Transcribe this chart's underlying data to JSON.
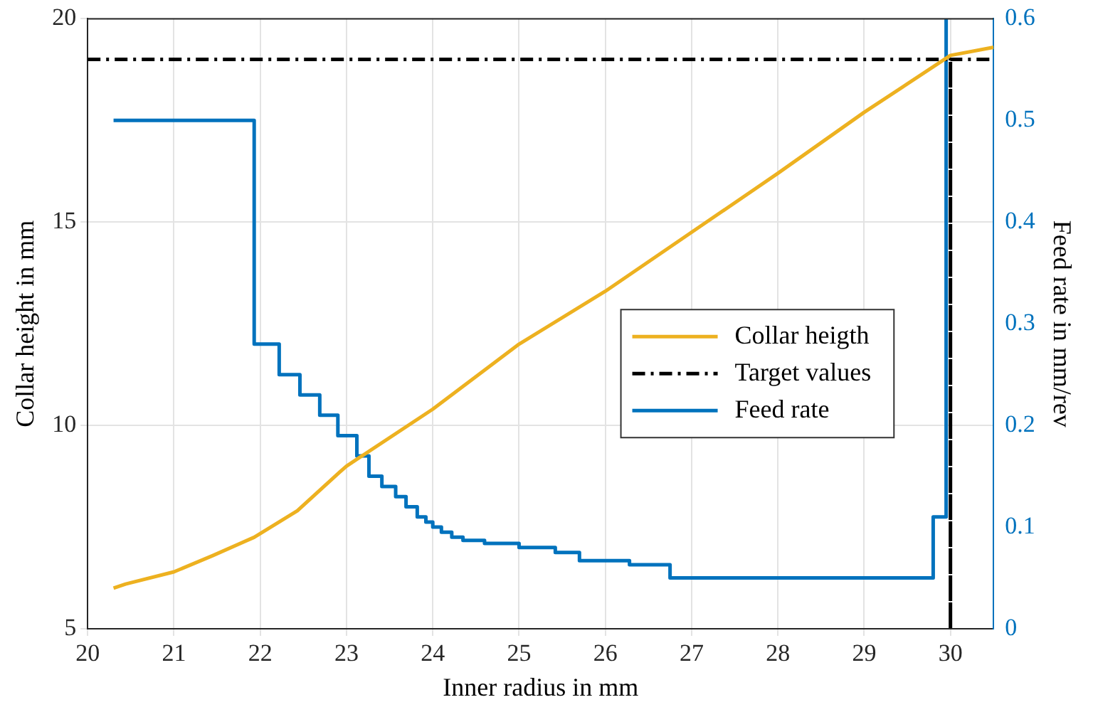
{
  "chart_data": {
    "type": "line",
    "xlabel": "Inner radius in mm",
    "ylabel": "Collar height in mm",
    "y2label": "Feed rate in mm/rev",
    "xlim": [
      20,
      30.5
    ],
    "xticks": [
      20,
      21,
      22,
      23,
      24,
      25,
      26,
      27,
      28,
      29,
      30
    ],
    "ylim": [
      5,
      20
    ],
    "yticks": [
      5,
      10,
      15,
      20
    ],
    "y2lim": [
      0,
      0.6
    ],
    "y2ticks": [
      0,
      0.1,
      0.2,
      0.3,
      0.4,
      0.5,
      0.6
    ],
    "grid": true,
    "legend": "right",
    "marker": "none",
    "series": [
      {
        "name": "Collar heigth",
        "type": "line",
        "color": "#edb120",
        "line_style": "solid",
        "x": [
          20.3,
          20.44,
          21,
          21.45,
          21.93,
          22.43,
          22.92,
          23,
          24,
          25,
          26,
          27,
          28,
          29,
          30,
          30.5
        ],
        "values": [
          6.0,
          6.1,
          6.4,
          6.8,
          7.25,
          7.9,
          8.85,
          9.0,
          10.4,
          12.0,
          13.3,
          14.75,
          16.2,
          17.7,
          19.1,
          19.3
        ]
      },
      {
        "name": "Target values",
        "type": "line",
        "color": "#000000",
        "line_style": "dashed",
        "x": [
          20,
          30,
          30,
          30,
          30.5
        ],
        "values": [
          19,
          19,
          5,
          19,
          19
        ]
      },
      {
        "name": "Feed rate",
        "type": "step",
        "axis": "y2",
        "color": "#0072bd",
        "line_style": "solid",
        "x": [
          20.3,
          21.93,
          22.22,
          22.46,
          22.69,
          22.9,
          23.12,
          23.26,
          23.41,
          23.57,
          23.69,
          23.82,
          23.92,
          24.0,
          24.1,
          24.22,
          24.35,
          24.6,
          25.0,
          25.42,
          25.7,
          26.28,
          26.75,
          29.8,
          29.95
        ],
        "values": [
          0.5,
          0.28,
          0.25,
          0.23,
          0.21,
          0.19,
          0.17,
          0.15,
          0.14,
          0.13,
          0.12,
          0.11,
          0.105,
          0.1,
          0.095,
          0.09,
          0.087,
          0.084,
          0.08,
          0.075,
          0.067,
          0.063,
          0.05,
          0.11,
          0.6
        ]
      }
    ]
  }
}
